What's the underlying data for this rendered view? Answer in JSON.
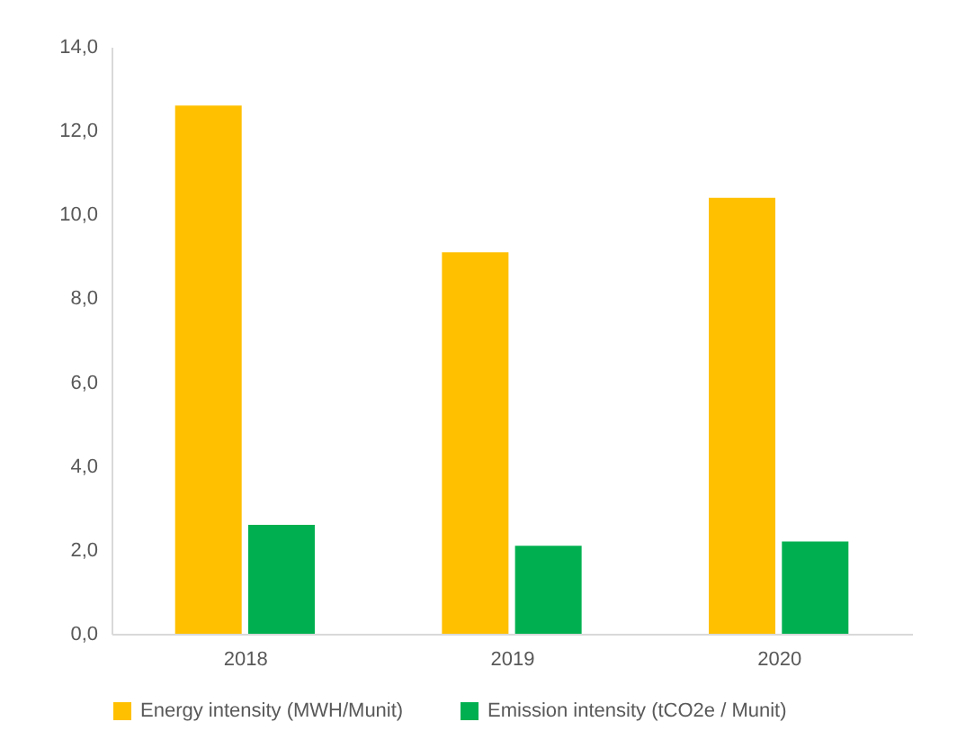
{
  "chart_data": {
    "type": "bar",
    "categories": [
      "2018",
      "2019",
      "2020"
    ],
    "series": [
      {
        "name": "Energy intensity (MWH/Munit)",
        "color": "#ffc000",
        "values": [
          12.6,
          9.1,
          10.4
        ]
      },
      {
        "name": "Emission intensity (tCO2e / Munit)",
        "color": "#00b050",
        "values": [
          2.6,
          2.1,
          2.2
        ]
      }
    ],
    "ylim": [
      0,
      14
    ],
    "yticks": [
      {
        "value": 0,
        "label": "0,0"
      },
      {
        "value": 2,
        "label": "2,0"
      },
      {
        "value": 4,
        "label": "4,0"
      },
      {
        "value": 6,
        "label": "6,0"
      },
      {
        "value": 8,
        "label": "8,0"
      },
      {
        "value": 10,
        "label": "10,0"
      },
      {
        "value": 12,
        "label": "12,0"
      },
      {
        "value": 14,
        "label": "14,0"
      }
    ],
    "grid": false,
    "legend": "bottom"
  }
}
